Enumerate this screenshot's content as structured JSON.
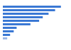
{
  "chart_data": {
    "type": "bar",
    "orientation": "horizontal",
    "categories": [
      null,
      null,
      null,
      null,
      null,
      null,
      null,
      null,
      null,
      null
    ],
    "values": [
      80,
      72,
      63,
      55,
      50,
      38,
      19,
      15,
      10,
      6
    ],
    "colors": [
      "#3a78d4",
      "#3a78d4",
      "#3a78d4",
      "#3a78d4",
      "#3a78d4",
      "#3a78d4",
      "#3a78d4",
      "#3a78d4",
      "#3a78d4",
      "#9db8e6"
    ],
    "xlim": [
      0,
      90
    ],
    "tick_labels": false,
    "grid": false
  }
}
